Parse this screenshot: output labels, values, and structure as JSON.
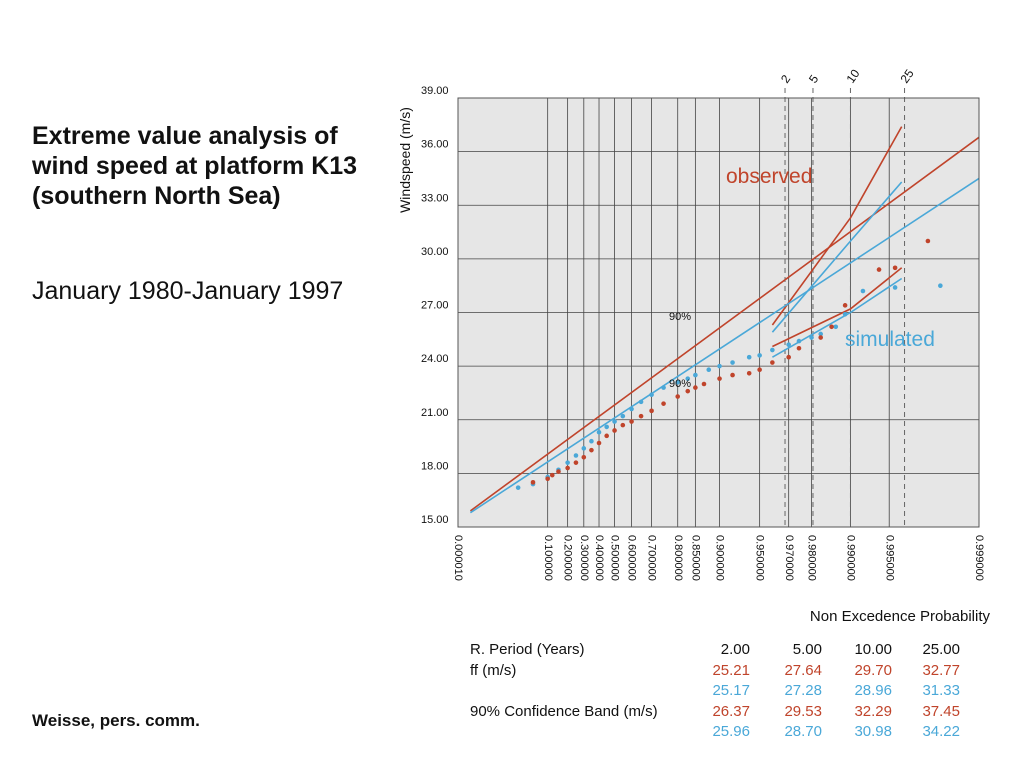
{
  "heading": {
    "title": "Extreme value analysis of wind speed at platform K13 (southern North Sea)",
    "subtitle": "January 1980-January 1997",
    "source": "Weisse, pers. comm."
  },
  "colors": {
    "observed": "#c0442b",
    "simulated": "#4aa8d8",
    "plot_bg": "#e6e6e6",
    "grid": "#444444",
    "dashed": "#666666"
  },
  "chart_data": {
    "type": "scatter",
    "title": "",
    "xlabel": "Non Excedence Probability",
    "ylabel": "Windspeed (m/s)",
    "ylim": [
      15,
      39
    ],
    "y_ticks": [
      "39.00",
      "36.00",
      "33.00",
      "30.00",
      "27.00",
      "24.00",
      "21.00",
      "18.00",
      "15.00"
    ],
    "x_ticks": [
      "0.000010",
      "0.100000",
      "0.200000",
      "0.300000",
      "0.400000",
      "0.500000",
      "0.600000",
      "0.700000",
      "0.800000",
      "0.850000",
      "0.900000",
      "0.950000",
      "0.970000",
      "0.980000",
      "0.990000",
      "0.995000",
      "0.999000"
    ],
    "return_periods": [
      "2",
      "5",
      "10",
      "25"
    ],
    "labels": {
      "observed": "observed",
      "simulated": "simulated",
      "band_upper": "90%",
      "band_lower": "90%"
    },
    "observed_points": [
      [
        0.05,
        17.5
      ],
      [
        0.1,
        17.7
      ],
      [
        0.12,
        17.9
      ],
      [
        0.15,
        18.1
      ],
      [
        0.2,
        18.3
      ],
      [
        0.25,
        18.6
      ],
      [
        0.3,
        18.9
      ],
      [
        0.35,
        19.3
      ],
      [
        0.4,
        19.7
      ],
      [
        0.45,
        20.1
      ],
      [
        0.5,
        20.4
      ],
      [
        0.55,
        20.7
      ],
      [
        0.6,
        20.9
      ],
      [
        0.65,
        21.2
      ],
      [
        0.7,
        21.5
      ],
      [
        0.75,
        21.9
      ],
      [
        0.8,
        22.3
      ],
      [
        0.83,
        22.6
      ],
      [
        0.85,
        22.8
      ],
      [
        0.87,
        23.0
      ],
      [
        0.9,
        23.3
      ],
      [
        0.92,
        23.5
      ],
      [
        0.94,
        23.6
      ],
      [
        0.95,
        23.8
      ],
      [
        0.96,
        24.2
      ],
      [
        0.97,
        24.5
      ],
      [
        0.975,
        25.0
      ],
      [
        0.983,
        25.6
      ],
      [
        0.986,
        26.2
      ],
      [
        0.989,
        27.4
      ],
      [
        0.994,
        29.4
      ],
      [
        0.9955,
        29.5
      ],
      [
        0.9975,
        31.0
      ]
    ],
    "simulated_points": [
      [
        0.02,
        17.2
      ],
      [
        0.05,
        17.4
      ],
      [
        0.1,
        17.8
      ],
      [
        0.15,
        18.2
      ],
      [
        0.2,
        18.6
      ],
      [
        0.25,
        19.0
      ],
      [
        0.3,
        19.4
      ],
      [
        0.35,
        19.8
      ],
      [
        0.4,
        20.3
      ],
      [
        0.45,
        20.6
      ],
      [
        0.5,
        20.9
      ],
      [
        0.55,
        21.2
      ],
      [
        0.6,
        21.6
      ],
      [
        0.65,
        22.0
      ],
      [
        0.7,
        22.4
      ],
      [
        0.75,
        22.8
      ],
      [
        0.8,
        23.1
      ],
      [
        0.83,
        23.3
      ],
      [
        0.85,
        23.5
      ],
      [
        0.88,
        23.8
      ],
      [
        0.9,
        24.0
      ],
      [
        0.92,
        24.2
      ],
      [
        0.94,
        24.5
      ],
      [
        0.95,
        24.6
      ],
      [
        0.96,
        24.9
      ],
      [
        0.97,
        25.2
      ],
      [
        0.975,
        25.4
      ],
      [
        0.98,
        25.6
      ],
      [
        0.983,
        25.8
      ],
      [
        0.987,
        26.2
      ],
      [
        0.989,
        26.9
      ],
      [
        0.992,
        28.2
      ],
      [
        0.9955,
        28.4
      ],
      [
        0.998,
        28.5
      ]
    ],
    "series": [
      {
        "name": "observed fit",
        "color": "observed",
        "points": [
          [
            0.0001,
            15.9
          ],
          [
            0.999,
            36.8
          ]
        ]
      },
      {
        "name": "observed 90% upper",
        "color": "observed",
        "points": [
          [
            0.96,
            26.3
          ],
          [
            0.99,
            32.3
          ],
          [
            0.996,
            37.4
          ]
        ]
      },
      {
        "name": "observed 90% lower",
        "color": "observed",
        "points": [
          [
            0.96,
            25.1
          ],
          [
            0.99,
            27.2
          ],
          [
            0.996,
            29.5
          ]
        ]
      },
      {
        "name": "simulated fit",
        "color": "simulated",
        "points": [
          [
            0.0001,
            15.8
          ],
          [
            0.999,
            34.5
          ]
        ]
      },
      {
        "name": "simulated 90% upper",
        "color": "simulated",
        "points": [
          [
            0.96,
            25.9
          ],
          [
            0.99,
            31.0
          ],
          [
            0.996,
            34.3
          ]
        ]
      },
      {
        "name": "simulated 90% lower",
        "color": "simulated",
        "points": [
          [
            0.96,
            24.5
          ],
          [
            0.99,
            27.0
          ],
          [
            0.996,
            28.9
          ]
        ]
      }
    ]
  },
  "table": {
    "header": {
      "label": "R. Period (Years)",
      "values": [
        "2.00",
        "5.00",
        "10.00",
        "25.00"
      ]
    },
    "rows": [
      {
        "label": "ff (m/s)",
        "series": "observed",
        "values": [
          "25.21",
          "27.64",
          "29.70",
          "32.77"
        ]
      },
      {
        "label": "",
        "series": "simulated",
        "values": [
          "25.17",
          "27.28",
          "28.96",
          "31.33"
        ]
      },
      {
        "label": "90% Confidence Band (m/s)",
        "series": "observed",
        "values": [
          "26.37",
          "29.53",
          "32.29",
          "37.45"
        ]
      },
      {
        "label": "",
        "series": "simulated",
        "values": [
          "25.96",
          "28.70",
          "30.98",
          "34.22"
        ]
      }
    ]
  }
}
